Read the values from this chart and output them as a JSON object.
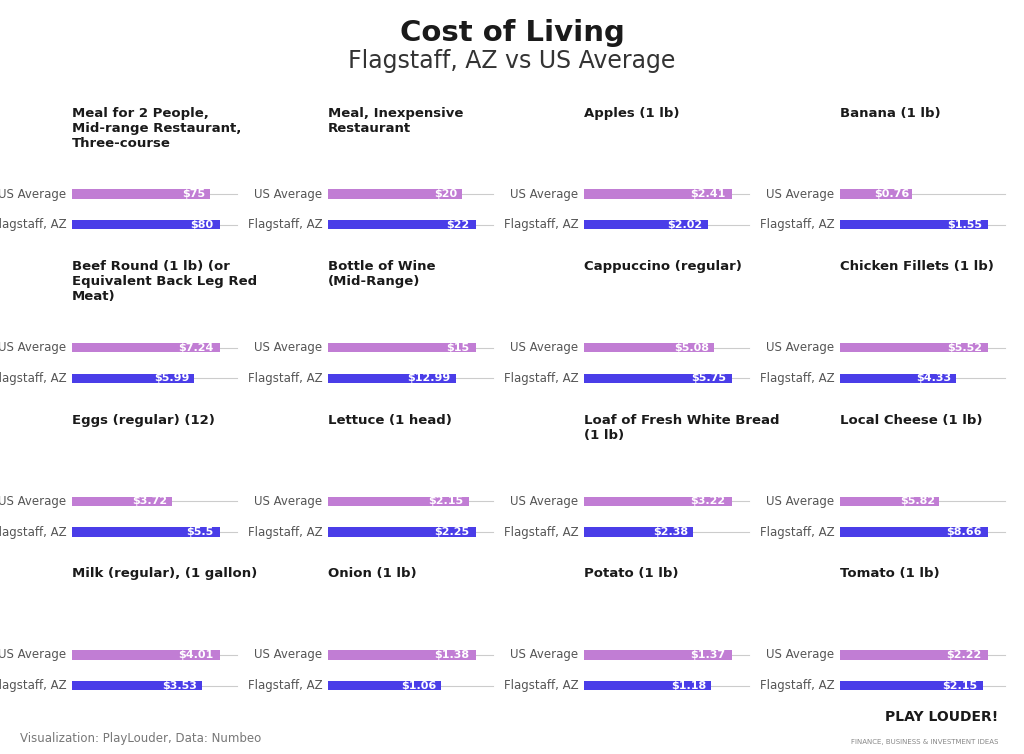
{
  "title": "Cost of Living",
  "subtitle": "Flagstaff, AZ vs US Average",
  "footer": "Visualization: PlayLouder, Data: Numbeo",
  "us_avg_color": "#c17dd4",
  "flagstaff_color": "#4a3de8",
  "background_color": "#ffffff",
  "items": [
    {
      "row": 0,
      "col": 0,
      "title": "Meal for 2 People,\nMid-range Restaurant,\nThree-course",
      "us_avg": 75,
      "flagstaff": 80,
      "us_label": "$75",
      "fl_label": "$80"
    },
    {
      "row": 0,
      "col": 1,
      "title": "Meal, Inexpensive\nRestaurant",
      "us_avg": 20,
      "flagstaff": 22,
      "us_label": "$20",
      "fl_label": "$22"
    },
    {
      "row": 0,
      "col": 2,
      "title": "Apples (1 lb)",
      "us_avg": 2.41,
      "flagstaff": 2.02,
      "us_label": "$2.41",
      "fl_label": "$2.02"
    },
    {
      "row": 0,
      "col": 3,
      "title": "Banana (1 lb)",
      "us_avg": 0.76,
      "flagstaff": 1.55,
      "us_label": "$0.76",
      "fl_label": "$1.55"
    },
    {
      "row": 1,
      "col": 0,
      "title": "Beef Round (1 lb) (or\nEquivalent Back Leg Red\nMeat)",
      "us_avg": 7.24,
      "flagstaff": 5.99,
      "us_label": "$7.24",
      "fl_label": "$5.99"
    },
    {
      "row": 1,
      "col": 1,
      "title": "Bottle of Wine\n(Mid-Range)",
      "us_avg": 15,
      "flagstaff": 12.99,
      "us_label": "$15",
      "fl_label": "$12.99"
    },
    {
      "row": 1,
      "col": 2,
      "title": "Cappuccino (regular)",
      "us_avg": 5.08,
      "flagstaff": 5.75,
      "us_label": "$5.08",
      "fl_label": "$5.75"
    },
    {
      "row": 1,
      "col": 3,
      "title": "Chicken Fillets (1 lb)",
      "us_avg": 5.52,
      "flagstaff": 4.33,
      "us_label": "$5.52",
      "fl_label": "$4.33"
    },
    {
      "row": 2,
      "col": 0,
      "title": "Eggs (regular) (12)",
      "us_avg": 3.72,
      "flagstaff": 5.5,
      "us_label": "$3.72",
      "fl_label": "$5.5"
    },
    {
      "row": 2,
      "col": 1,
      "title": "Lettuce (1 head)",
      "us_avg": 2.15,
      "flagstaff": 2.25,
      "us_label": "$2.15",
      "fl_label": "$2.25"
    },
    {
      "row": 2,
      "col": 2,
      "title": "Loaf of Fresh White Bread\n(1 lb)",
      "us_avg": 3.22,
      "flagstaff": 2.38,
      "us_label": "$3.22",
      "fl_label": "$2.38"
    },
    {
      "row": 2,
      "col": 3,
      "title": "Local Cheese (1 lb)",
      "us_avg": 5.82,
      "flagstaff": 8.66,
      "us_label": "$5.82",
      "fl_label": "$8.66"
    },
    {
      "row": 3,
      "col": 0,
      "title": "Milk (regular), (1 gallon)",
      "us_avg": 4.01,
      "flagstaff": 3.53,
      "us_label": "$4.01",
      "fl_label": "$3.53"
    },
    {
      "row": 3,
      "col": 1,
      "title": "Onion (1 lb)",
      "us_avg": 1.38,
      "flagstaff": 1.06,
      "us_label": "$1.38",
      "fl_label": "$1.06"
    },
    {
      "row": 3,
      "col": 2,
      "title": "Potato (1 lb)",
      "us_avg": 1.37,
      "flagstaff": 1.18,
      "us_label": "$1.37",
      "fl_label": "$1.18"
    },
    {
      "row": 3,
      "col": 3,
      "title": "Tomato (1 lb)",
      "us_avg": 2.22,
      "flagstaff": 2.15,
      "us_label": "$2.22",
      "fl_label": "$2.15"
    }
  ],
  "y_labels": [
    "US Average",
    "Flagstaff, AZ"
  ],
  "title_fontsize": 21,
  "subtitle_fontsize": 17,
  "category_fontsize": 9.5,
  "bar_label_fontsize": 8,
  "ylabel_fontsize": 8.5,
  "footer_fontsize": 8.5
}
